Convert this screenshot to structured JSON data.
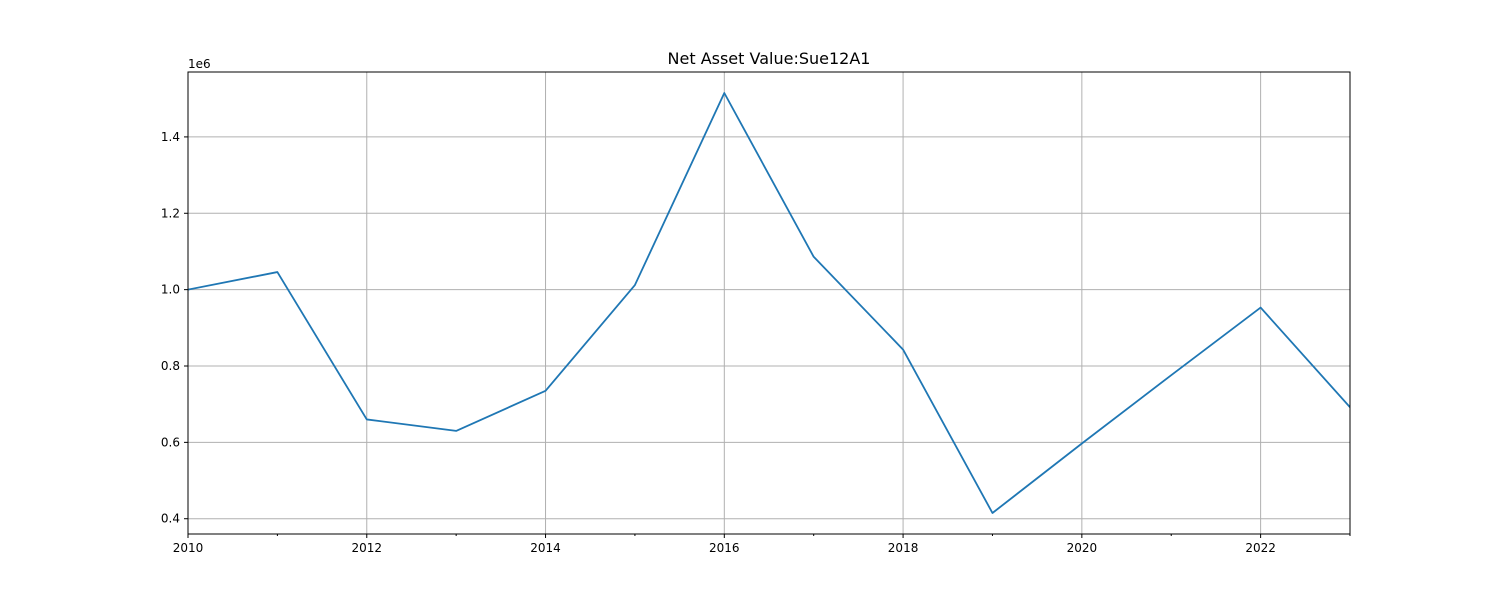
{
  "chart_data": {
    "type": "line",
    "title": "Net Asset Value:Sue12A1",
    "xlabel": "",
    "ylabel": "",
    "y_offset_label": "1e6",
    "xlim": [
      2010,
      2023
    ],
    "ylim": [
      0.36,
      1.57
    ],
    "x_ticks": [
      2010,
      2012,
      2014,
      2016,
      2018,
      2020,
      2022
    ],
    "x_tick_labels": [
      "2010",
      "2012",
      "2014",
      "2016",
      "2018",
      "2020",
      "2022"
    ],
    "x_minor_ticks": [
      2011,
      2013,
      2015,
      2017,
      2019,
      2021,
      2023
    ],
    "y_ticks": [
      0.4,
      0.6,
      0.8,
      1.0,
      1.2,
      1.4
    ],
    "y_tick_labels": [
      "0.4",
      "0.6",
      "0.8",
      "1.0",
      "1.2",
      "1.4"
    ],
    "grid": true,
    "series": [
      {
        "color": "#1f77b4",
        "x": [
          2010,
          2011,
          2012,
          2013,
          2014,
          2015,
          2016,
          2017,
          2018,
          2019,
          2020,
          2021,
          2022,
          2023
        ],
        "y": [
          1.0,
          1.046,
          0.66,
          0.63,
          0.735,
          1.012,
          1.515,
          1.086,
          0.843,
          0.415,
          0.597,
          0.776,
          0.953,
          0.692
        ]
      }
    ]
  }
}
